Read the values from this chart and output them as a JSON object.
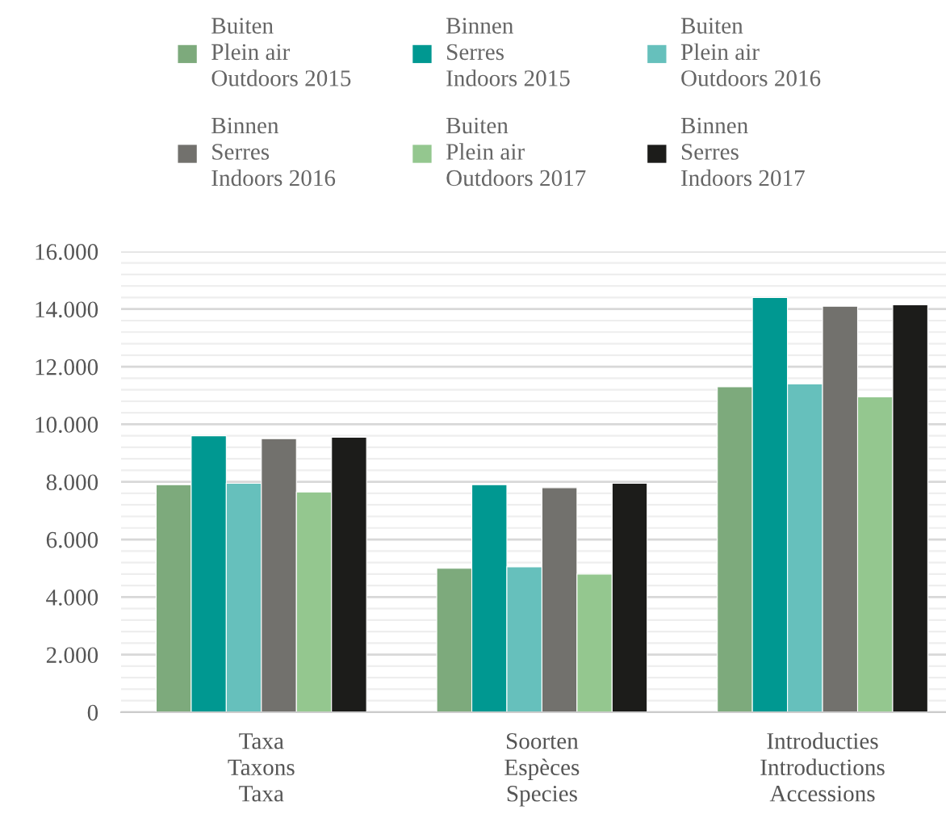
{
  "chart_data": {
    "type": "bar",
    "categories": [
      "Taxa\nTaxons\nTaxa",
      "Soorten\nEspèces\nSpecies",
      "Introducties\nIntroductions\nAccessions"
    ],
    "series": [
      {
        "name": "Buiten\nPlein air\nOutdoors 2015",
        "color": "#7daa7c",
        "values": [
          7900,
          5000,
          11300
        ]
      },
      {
        "name": "Binnen\nSerres\nIndoors 2015",
        "color": "#009891",
        "values": [
          9600,
          7900,
          14400
        ]
      },
      {
        "name": "Buiten\nPlein air\nOutdoors 2016",
        "color": "#66c0bc",
        "values": [
          7950,
          5050,
          11400
        ]
      },
      {
        "name": "Binnen\nSerres\nIndoors 2016",
        "color": "#72716d",
        "values": [
          9500,
          7800,
          14100
        ]
      },
      {
        "name": "Buiten\nPlein air\nOutdoors 2017",
        "color": "#94c78f",
        "values": [
          7650,
          4800,
          10950
        ]
      },
      {
        "name": "Binnen\nSerres\nIndoors 2017",
        "color": "#1c1c1a",
        "values": [
          9550,
          7950,
          14150
        ]
      }
    ],
    "ylim": [
      0,
      16000
    ],
    "yticks": [
      {
        "value": 0,
        "label": "0"
      },
      {
        "value": 400,
        "label": null
      },
      {
        "value": 800,
        "label": null
      },
      {
        "value": 1200,
        "label": null
      },
      {
        "value": 1600,
        "label": null
      },
      {
        "value": 2000,
        "label": "2.000"
      },
      {
        "value": 2400,
        "label": null
      },
      {
        "value": 2800,
        "label": null
      },
      {
        "value": 3200,
        "label": null
      },
      {
        "value": 3600,
        "label": null
      },
      {
        "value": 4000,
        "label": "4.000"
      },
      {
        "value": 4400,
        "label": null
      },
      {
        "value": 4800,
        "label": null
      },
      {
        "value": 5200,
        "label": null
      },
      {
        "value": 5600,
        "label": null
      },
      {
        "value": 6000,
        "label": "6.000"
      },
      {
        "value": 6400,
        "label": null
      },
      {
        "value": 6800,
        "label": null
      },
      {
        "value": 7200,
        "label": null
      },
      {
        "value": 7600,
        "label": null
      },
      {
        "value": 8000,
        "label": "8.000"
      },
      {
        "value": 8400,
        "label": null
      },
      {
        "value": 8800,
        "label": null
      },
      {
        "value": 9200,
        "label": null
      },
      {
        "value": 9600,
        "label": null
      },
      {
        "value": 10000,
        "label": "10.000"
      },
      {
        "value": 10400,
        "label": null
      },
      {
        "value": 10800,
        "label": null
      },
      {
        "value": 11200,
        "label": null
      },
      {
        "value": 11600,
        "label": null
      },
      {
        "value": 12000,
        "label": "12.000"
      },
      {
        "value": 12400,
        "label": null
      },
      {
        "value": 12800,
        "label": null
      },
      {
        "value": 13200,
        "label": null
      },
      {
        "value": 13600,
        "label": null
      },
      {
        "value": 14000,
        "label": "14.000"
      },
      {
        "value": 14400,
        "label": null
      },
      {
        "value": 14800,
        "label": null
      },
      {
        "value": 15200,
        "label": null
      },
      {
        "value": 15600,
        "label": null
      },
      {
        "value": 16000,
        "label": "16.000"
      }
    ],
    "grid": "y",
    "legend": "top"
  }
}
